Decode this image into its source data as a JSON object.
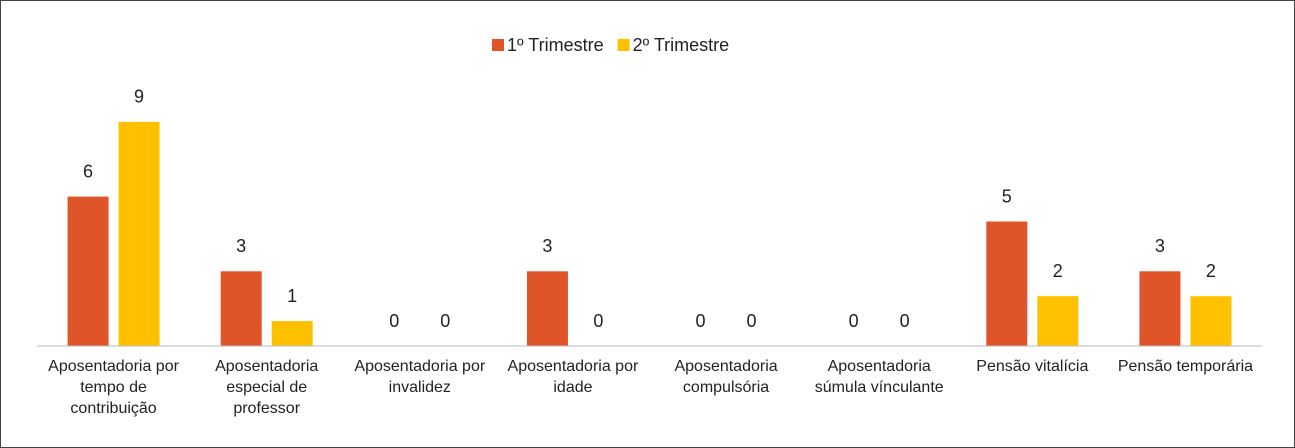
{
  "chart_data": {
    "type": "bar",
    "categories": [
      "Aposentadoria por tempo de contribuição",
      "Aposentadoria especial de professor",
      "Aposentadoria por invalidez",
      "Aposentadoria por idade",
      "Aposentadoria compulsória",
      "Aposentadoria súmula vínculante",
      "Pensão vitalícia",
      "Pensão temporária"
    ],
    "series": [
      {
        "name": "1º Trimestre",
        "color": "#e0542a",
        "values": [
          6,
          3,
          0,
          3,
          0,
          0,
          5,
          3
        ]
      },
      {
        "name": "2º Trimestre",
        "color": "#ffc000",
        "values": [
          9,
          1,
          0,
          0,
          0,
          0,
          2,
          2
        ]
      }
    ],
    "ylim": [
      0,
      10
    ],
    "legend": "top"
  }
}
